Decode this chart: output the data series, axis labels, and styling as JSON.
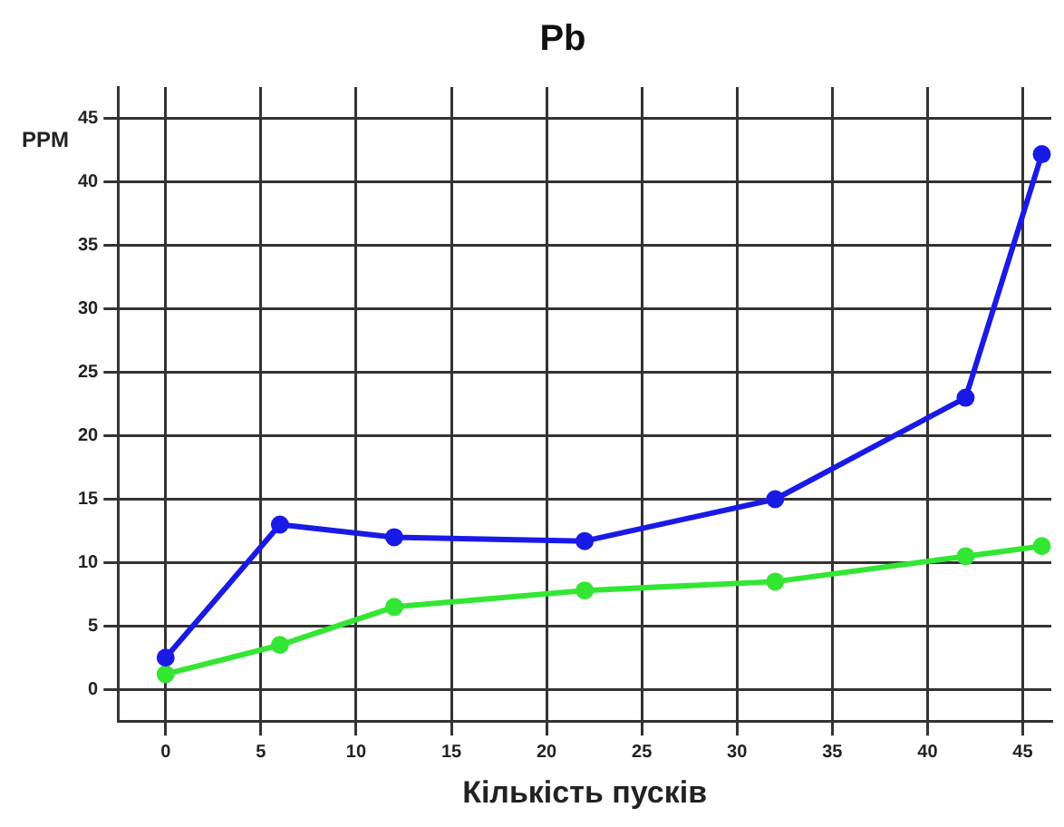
{
  "chart_data": {
    "type": "line",
    "title": "Pb",
    "xlabel": "Кількість пусків",
    "ylabel": "PPM",
    "xlim": [
      -2.5,
      46.5
    ],
    "xticks": [
      0,
      5,
      10,
      15,
      20,
      25,
      30,
      35,
      40,
      45
    ],
    "ylim": [
      -2.5,
      47.5
    ],
    "yticks": [
      0,
      5,
      10,
      15,
      20,
      25,
      30,
      35,
      40,
      45
    ],
    "grid": true,
    "legend": false,
    "marker": "circle",
    "line_style": "solid",
    "series": [
      {
        "color": "#1a1ae6",
        "x": [
          0,
          6,
          12,
          22,
          32,
          42,
          46
        ],
        "values": [
          2.5,
          13,
          12,
          11.7,
          15,
          23,
          42.2
        ]
      },
      {
        "color": "#33e633",
        "x": [
          0,
          6,
          12,
          22,
          32,
          42,
          46
        ],
        "values": [
          1.2,
          3.5,
          6.5,
          7.8,
          8.5,
          10.5,
          11.3
        ]
      }
    ]
  }
}
